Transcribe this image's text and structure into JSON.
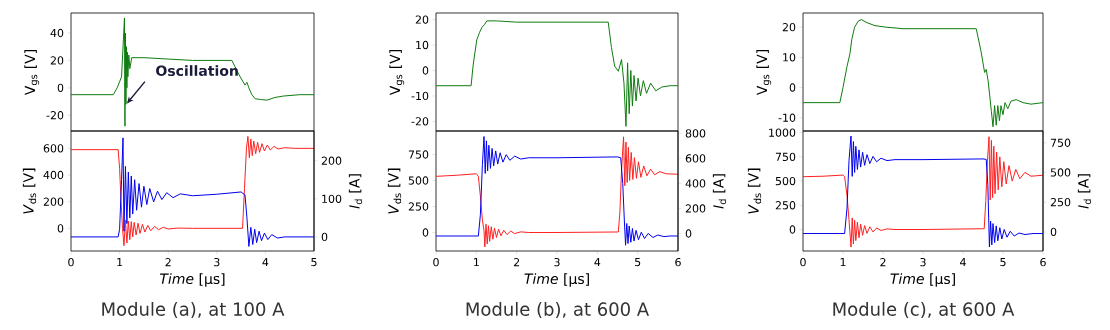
{
  "chart_data": [
    {
      "type": "line",
      "ylabel": "V$_{gs}$ [V]",
      "xlim": [
        0,
        5
      ],
      "ylim": [
        -31.5,
        54.6
      ],
      "yticks": [
        -20,
        0,
        20,
        40
      ],
      "tick_labels": "y",
      "annotations": [
        {
          "text": "Oscillation",
          "x": 1.15,
          "y": -11.5
        }
      ],
      "series": [
        {
          "color": "#0f7b0f",
          "x": [
            0,
            0.5,
            0.87,
            0.95,
            1.04,
            1.1,
            1.11,
            1.12,
            1.13,
            1.14,
            1.15,
            1.16,
            1.17,
            1.19,
            1.21,
            1.25,
            1.3,
            1.5,
            2,
            2.5,
            3,
            3.31,
            3.45,
            3.58,
            3.62,
            3.66,
            3.72,
            3.79,
            3.9,
            4.03,
            4.2,
            4.37,
            4.71,
            5
          ],
          "values": [
            -5,
            -5,
            -5,
            0,
            8,
            51,
            -28,
            40,
            -12,
            30,
            0,
            26,
            8,
            24,
            14,
            22,
            22,
            22,
            21,
            20,
            20,
            20,
            10,
            2,
            4,
            0,
            -5,
            -8,
            -8.5,
            -9,
            -7,
            -6,
            -5,
            -5
          ]
        }
      ]
    },
    {
      "type": "line",
      "xlabel": "*Time* [μs]",
      "ylabel": "*V*$_{ds}$ [V]",
      "y2label": "*I*$_{d}$ [A]",
      "xlim": [
        0,
        5
      ],
      "xticks": [
        0,
        1,
        2,
        3,
        4,
        5
      ],
      "ylim": [
        -170,
        730
      ],
      "yticks": [
        0,
        200,
        400,
        600
      ],
      "y2lim": [
        -37,
        278
      ],
      "y2ticks": [
        0,
        100,
        200
      ],
      "annotations": [
        "Module (a), at 100 A"
      ],
      "series": [
        {
          "color": "#ff2020",
          "x": [
            0,
            0.97,
            1.0,
            1.03,
            1.06,
            1.09,
            1.12,
            1.15,
            1.18,
            1.21,
            1.24,
            1.27,
            1.3,
            1.34,
            1.38,
            1.42,
            1.47,
            1.52,
            1.58,
            1.64,
            1.72,
            1.8,
            1.9,
            2.0,
            2.2,
            2.5,
            3.0,
            3.53,
            3.57,
            3.61,
            3.64,
            3.67,
            3.7,
            3.73,
            3.76,
            3.8,
            3.84,
            3.88,
            3.93,
            3.98,
            4.04,
            4.1,
            4.18,
            4.26,
            4.4,
            4.6,
            5
          ],
          "values": [
            590,
            590,
            450,
            200,
            0,
            -130,
            60,
            -110,
            55,
            -85,
            50,
            -65,
            45,
            -50,
            38,
            -38,
            30,
            -28,
            22,
            -18,
            15,
            -10,
            8,
            -5,
            2,
            0,
            0,
            0,
            300,
            600,
            690,
            530,
            670,
            545,
            655,
            560,
            645,
            570,
            635,
            580,
            625,
            588,
            615,
            595,
            605,
            600,
            600
          ]
        },
        {
          "color": "#0000ee",
          "axis": "y2",
          "x": [
            0,
            0.97,
            1.0,
            1.04,
            1.07,
            1.09,
            1.12,
            1.15,
            1.18,
            1.21,
            1.24,
            1.27,
            1.31,
            1.35,
            1.4,
            1.45,
            1.5,
            1.56,
            1.62,
            1.7,
            1.78,
            1.87,
            1.97,
            2.1,
            2.25,
            2.5,
            3.0,
            3.5,
            3.58,
            3.62,
            3.66,
            3.7,
            3.74,
            3.78,
            3.82,
            3.87,
            3.92,
            3.98,
            4.05,
            4.13,
            4.25,
            4.4,
            5
          ],
          "values": [
            0,
            0,
            20,
            150,
            260,
            15,
            185,
            35,
            170,
            50,
            160,
            60,
            150,
            70,
            140,
            78,
            133,
            85,
            127,
            92,
            120,
            98,
            116,
            103,
            113,
            108,
            112,
            118,
            110,
            50,
            -25,
            25,
            -20,
            20,
            -15,
            15,
            -10,
            10,
            -7,
            6,
            -3,
            0,
            0
          ]
        }
      ]
    },
    {
      "type": "line",
      "ylabel": "V$_{gs}$ [V]",
      "xlim": [
        0,
        6
      ],
      "ylim": [
        -23.8,
        22.6
      ],
      "yticks": [
        -20,
        -10,
        0,
        10,
        20
      ],
      "tick_labels": "y",
      "series": [
        {
          "color": "#0f7b0f",
          "x": [
            0,
            0.87,
            0.92,
            1.01,
            1.08,
            1.14,
            1.2,
            1.26,
            1.35,
            1.5,
            2,
            3,
            4,
            4.27,
            4.35,
            4.43,
            4.52,
            4.6,
            4.66,
            4.71,
            4.75,
            4.79,
            4.83,
            4.87,
            4.91,
            4.96,
            5.01,
            5.07,
            5.14,
            5.22,
            5.32,
            5.45,
            5.6,
            5.8,
            6
          ],
          "values": [
            -6,
            -6,
            2,
            12,
            15,
            17,
            18,
            19.5,
            19.5,
            19.5,
            19,
            19,
            19,
            19,
            9,
            1.7,
            -0.3,
            4.3,
            -5,
            -22,
            3,
            -17,
            0,
            -14,
            -2,
            -12,
            -3,
            -10,
            -4,
            -9,
            -5,
            -8,
            -6.5,
            -6,
            -6
          ]
        }
      ]
    },
    {
      "type": "line",
      "xlabel": "*Time* [μs]",
      "ylabel": "*V*$_{ds}$ [V]",
      "y2label": "*I*$_{d}$ [A]",
      "xlim": [
        0,
        6
      ],
      "xticks": [
        0,
        1,
        2,
        3,
        4,
        5,
        6
      ],
      "ylim": [
        -178,
        976
      ],
      "yticks": [
        0,
        250,
        500,
        750
      ],
      "y2lim": [
        -140,
        819
      ],
      "y2ticks": [
        0,
        200,
        400,
        600,
        800
      ],
      "annotations": [
        "Module (b), at 600 A"
      ],
      "series": [
        {
          "color": "#ff2020",
          "x": [
            0,
            0.5,
            1.0,
            1.05,
            1.1,
            1.15,
            1.19,
            1.21,
            1.24,
            1.27,
            1.3,
            1.33,
            1.37,
            1.41,
            1.45,
            1.5,
            1.55,
            1.61,
            1.68,
            1.76,
            1.85,
            1.95,
            2.1,
            2.3,
            3,
            4.52,
            4.56,
            4.6,
            4.65,
            4.68,
            4.71,
            4.74,
            4.77,
            4.8,
            4.84,
            4.88,
            4.92,
            4.97,
            5.02,
            5.08,
            5.15,
            5.23,
            5.32,
            5.42,
            5.55,
            5.7,
            6
          ],
          "values": [
            540,
            550,
            565,
            540,
            350,
            120,
            20,
            -139,
            80,
            -110,
            65,
            -85,
            55,
            -65,
            42,
            -48,
            32,
            -32,
            22,
            -20,
            14,
            -10,
            6,
            0,
            0,
            5,
            200,
            600,
            920,
            450,
            870,
            480,
            820,
            500,
            770,
            510,
            720,
            520,
            680,
            530,
            640,
            545,
            610,
            555,
            585,
            565,
            560
          ]
        },
        {
          "color": "#0000ee",
          "axis": "y2",
          "x": [
            0,
            1.05,
            1.1,
            1.15,
            1.19,
            1.22,
            1.25,
            1.28,
            1.31,
            1.35,
            1.39,
            1.43,
            1.48,
            1.53,
            1.59,
            1.66,
            1.74,
            1.83,
            1.95,
            2.1,
            2.3,
            3,
            4.5,
            4.58,
            4.63,
            4.67,
            4.7,
            4.73,
            4.76,
            4.79,
            4.83,
            4.87,
            4.91,
            4.96,
            5.02,
            5.09,
            5.17,
            5.26,
            5.38,
            5.5,
            5.65,
            5.8,
            6
          ],
          "values": [
            -20,
            -20,
            150,
            550,
            775,
            480,
            740,
            500,
            705,
            520,
            680,
            540,
            660,
            555,
            645,
            570,
            630,
            585,
            618,
            595,
            605,
            605,
            612,
            605,
            400,
            100,
            -94,
            80,
            -80,
            60,
            -70,
            40,
            -60,
            25,
            -50,
            10,
            -40,
            0,
            -32,
            -12,
            -25,
            -20,
            -20
          ]
        }
      ]
    },
    {
      "type": "line",
      "ylabel": "V$_{gs}$ [V]",
      "xlim": [
        0,
        6
      ],
      "ylim": [
        -14.4,
        24.7
      ],
      "yticks": [
        -10,
        0,
        10,
        20
      ],
      "tick_labels": "y",
      "series": [
        {
          "color": "#0f7b0f",
          "x": [
            0,
            0.92,
            1.0,
            1.1,
            1.17,
            1.22,
            1.29,
            1.38,
            1.46,
            1.6,
            1.8,
            2.08,
            2.5,
            3,
            4,
            4.33,
            4.45,
            4.54,
            4.58,
            4.63,
            4.71,
            4.75,
            4.79,
            4.83,
            4.87,
            4.91,
            4.95,
            5.0,
            5.05,
            5.12,
            5.2,
            5.33,
            5.5,
            5.7,
            6
          ],
          "values": [
            -5,
            -5,
            0,
            7,
            11,
            16,
            20,
            22,
            22.5,
            21.5,
            20.5,
            20,
            19.5,
            19.5,
            19.5,
            19.5,
            12,
            5,
            6,
            2,
            -8,
            -13,
            -6,
            -12.5,
            -6,
            -11,
            -6,
            -9,
            -5,
            -7,
            -4.5,
            -4,
            -5,
            -5.5,
            -5
          ]
        }
      ]
    },
    {
      "type": "line",
      "xlabel": "*Time* [μs]",
      "ylabel": "*V*$_{ds}$ [V]",
      "y2label": "*I*$_{d}$ [A]",
      "xlim": [
        0,
        6
      ],
      "xticks": [
        0,
        1,
        2,
        3,
        4,
        5,
        6
      ],
      "ylim": [
        -222,
        1017
      ],
      "yticks": [
        0,
        250,
        500,
        750,
        1000
      ],
      "y2lim": [
        -161,
        849
      ],
      "y2ticks": [
        0,
        250,
        500,
        750
      ],
      "annotations": [
        "Module (c), at 600 A"
      ],
      "series": [
        {
          "color": "#ff2020",
          "x": [
            0,
            0.5,
            1.0,
            1.04,
            1.1,
            1.15,
            1.2,
            1.23,
            1.26,
            1.29,
            1.32,
            1.36,
            1.4,
            1.44,
            1.49,
            1.54,
            1.6,
            1.67,
            1.75,
            1.84,
            1.95,
            2.1,
            2.3,
            3,
            4.53,
            4.57,
            4.61,
            4.65,
            4.68,
            4.71,
            4.74,
            4.77,
            4.8,
            4.84,
            4.88,
            4.92,
            4.97,
            5.02,
            5.08,
            5.15,
            5.23,
            5.32,
            5.42,
            5.55,
            5.7,
            6
          ],
          "values": [
            545,
            550,
            562,
            545,
            350,
            100,
            -181,
            120,
            -150,
            95,
            -115,
            75,
            -85,
            55,
            -60,
            40,
            -40,
            28,
            -25,
            15,
            -10,
            6,
            0,
            0,
            8,
            300,
            700,
            958,
            306,
            920,
            330,
            860,
            370,
            800,
            410,
            750,
            440,
            700,
            470,
            660,
            500,
            620,
            525,
            590,
            550,
            560
          ]
        },
        {
          "color": "#0000ee",
          "axis": "y2",
          "x": [
            0,
            1.04,
            1.1,
            1.15,
            1.2,
            1.23,
            1.26,
            1.29,
            1.32,
            1.36,
            1.4,
            1.44,
            1.49,
            1.54,
            1.6,
            1.67,
            1.75,
            1.84,
            1.95,
            2.1,
            2.3,
            3,
            4.5,
            4.58,
            4.62,
            4.66,
            4.69,
            4.72,
            4.75,
            4.79,
            4.83,
            4.87,
            4.92,
            4.97,
            5.03,
            5.1,
            5.18,
            5.28,
            5.4,
            5.55,
            5.75,
            6
          ],
          "values": [
            -14,
            -14,
            200,
            600,
            807,
            467,
            760,
            500,
            720,
            525,
            690,
            545,
            670,
            560,
            650,
            575,
            635,
            590,
            620,
            600,
            608,
            608,
            614,
            610,
            400,
            -127,
            90,
            -110,
            70,
            -90,
            50,
            -75,
            35,
            -60,
            20,
            -45,
            5,
            -35,
            -10,
            -22,
            -14,
            -14
          ]
        }
      ]
    }
  ]
}
